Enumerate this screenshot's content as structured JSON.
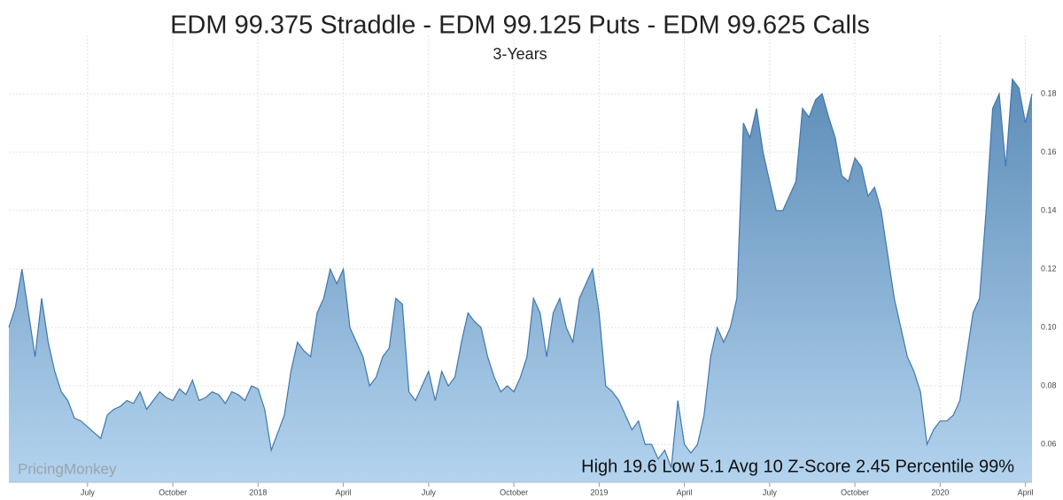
{
  "chart_data": {
    "type": "area",
    "title": "EDM 99.375 Straddle - EDM 99.125 Puts - EDM 99.625 Calls",
    "subtitle": "3-Years",
    "watermark": "PricingMonkey",
    "annotation": "High 19.6 Low 5.1 Avg 10 Z-Score 2.45 Percentile 99%",
    "categories": [
      null,
      null,
      null,
      null,
      null,
      null,
      null,
      null,
      null,
      null,
      null,
      null,
      "July",
      null,
      null,
      null,
      null,
      null,
      null,
      null,
      null,
      null,
      null,
      null,
      null,
      "October",
      null,
      null,
      null,
      null,
      null,
      null,
      null,
      null,
      null,
      null,
      null,
      null,
      "2018",
      null,
      null,
      null,
      null,
      null,
      null,
      null,
      null,
      null,
      null,
      null,
      null,
      "April",
      null,
      null,
      null,
      null,
      null,
      null,
      null,
      null,
      null,
      null,
      null,
      null,
      "July",
      null,
      null,
      null,
      null,
      null,
      null,
      null,
      null,
      null,
      null,
      null,
      null,
      "October",
      null,
      null,
      null,
      null,
      null,
      null,
      null,
      null,
      null,
      null,
      null,
      null,
      "2019",
      null,
      null,
      null,
      null,
      null,
      null,
      null,
      null,
      null,
      null,
      null,
      null,
      "April",
      null,
      null,
      null,
      null,
      null,
      null,
      null,
      null,
      null,
      null,
      null,
      null,
      "July",
      null,
      null,
      null,
      null,
      null,
      null,
      null,
      null,
      null,
      null,
      null,
      null,
      "October",
      null,
      null,
      null,
      null,
      null,
      null,
      null,
      null,
      null,
      null,
      null,
      null,
      "2020",
      null,
      null,
      null,
      null,
      null,
      null,
      null,
      null,
      null,
      null,
      null,
      null,
      "April",
      null
    ],
    "values": [
      0.1,
      0.107,
      0.12,
      0.105,
      0.09,
      0.11,
      0.095,
      0.085,
      0.078,
      0.075,
      0.069,
      0.068,
      0.066,
      0.064,
      0.062,
      0.07,
      0.072,
      0.073,
      0.075,
      0.074,
      0.078,
      0.072,
      0.075,
      0.078,
      0.076,
      0.075,
      0.079,
      0.077,
      0.082,
      0.075,
      0.076,
      0.078,
      0.077,
      0.074,
      0.078,
      0.077,
      0.075,
      0.08,
      0.079,
      0.072,
      0.058,
      0.064,
      0.07,
      0.085,
      0.095,
      0.092,
      0.09,
      0.105,
      0.11,
      0.12,
      0.115,
      0.12,
      0.1,
      0.095,
      0.09,
      0.08,
      0.083,
      0.09,
      0.093,
      0.11,
      0.108,
      0.078,
      0.075,
      0.08,
      0.085,
      0.075,
      0.085,
      0.08,
      0.083,
      0.095,
      0.105,
      0.102,
      0.1,
      0.09,
      0.083,
      0.078,
      0.08,
      0.078,
      0.083,
      0.09,
      0.11,
      0.105,
      0.09,
      0.105,
      0.11,
      0.1,
      0.095,
      0.11,
      0.115,
      0.12,
      0.105,
      0.08,
      0.078,
      0.075,
      0.07,
      0.065,
      0.068,
      0.06,
      0.06,
      0.055,
      0.058,
      0.052,
      0.075,
      0.06,
      0.057,
      0.06,
      0.07,
      0.09,
      0.1,
      0.095,
      0.1,
      0.11,
      0.17,
      0.165,
      0.175,
      0.16,
      0.15,
      0.14,
      0.14,
      0.145,
      0.15,
      0.175,
      0.172,
      0.178,
      0.18,
      0.172,
      0.165,
      0.152,
      0.15,
      0.158,
      0.155,
      0.145,
      0.148,
      0.14,
      0.125,
      0.11,
      0.1,
      0.09,
      0.085,
      0.078,
      0.06,
      0.065,
      0.068,
      0.068,
      0.07,
      0.075,
      0.09,
      0.105,
      0.11,
      0.14,
      0.175,
      0.18,
      0.155,
      0.185,
      0.182,
      0.17,
      0.18
    ],
    "color": "#3f78b0",
    "ylim": [
      0.047,
      0.2
    ],
    "yticks": [
      0.06,
      0.08,
      {
        "value": 0.1,
        "label": "0.10"
      },
      0.12,
      0.14,
      0.16,
      0.18
    ],
    "grid": true
  }
}
